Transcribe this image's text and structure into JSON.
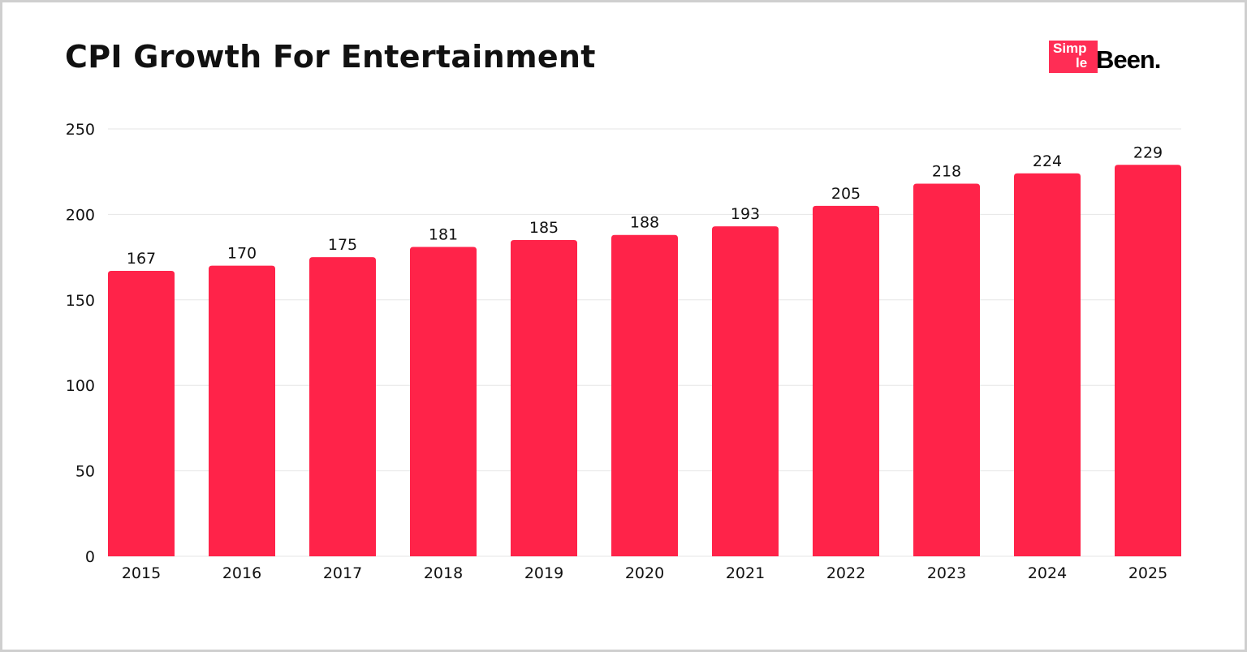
{
  "chart_data": {
    "type": "bar",
    "title": "CPI Growth For Entertainment",
    "categories": [
      "2015",
      "2016",
      "2017",
      "2018",
      "2019",
      "2020",
      "2021",
      "2022",
      "2023",
      "2024",
      "2025"
    ],
    "values": [
      167,
      170,
      175,
      181,
      185,
      188,
      193,
      205,
      218,
      224,
      229
    ],
    "xlabel": "",
    "ylabel": "",
    "ylim": [
      0,
      250
    ],
    "yticks": [
      0,
      50,
      100,
      150,
      200,
      250
    ],
    "grid": true,
    "data_labels": true,
    "bar_color": "#ff2349",
    "grid_color": "#e6e6e6"
  },
  "logo": {
    "text_part1": "Simp",
    "text_part2": "le",
    "text_part3": "Been.",
    "accent": "#ff2d55"
  }
}
